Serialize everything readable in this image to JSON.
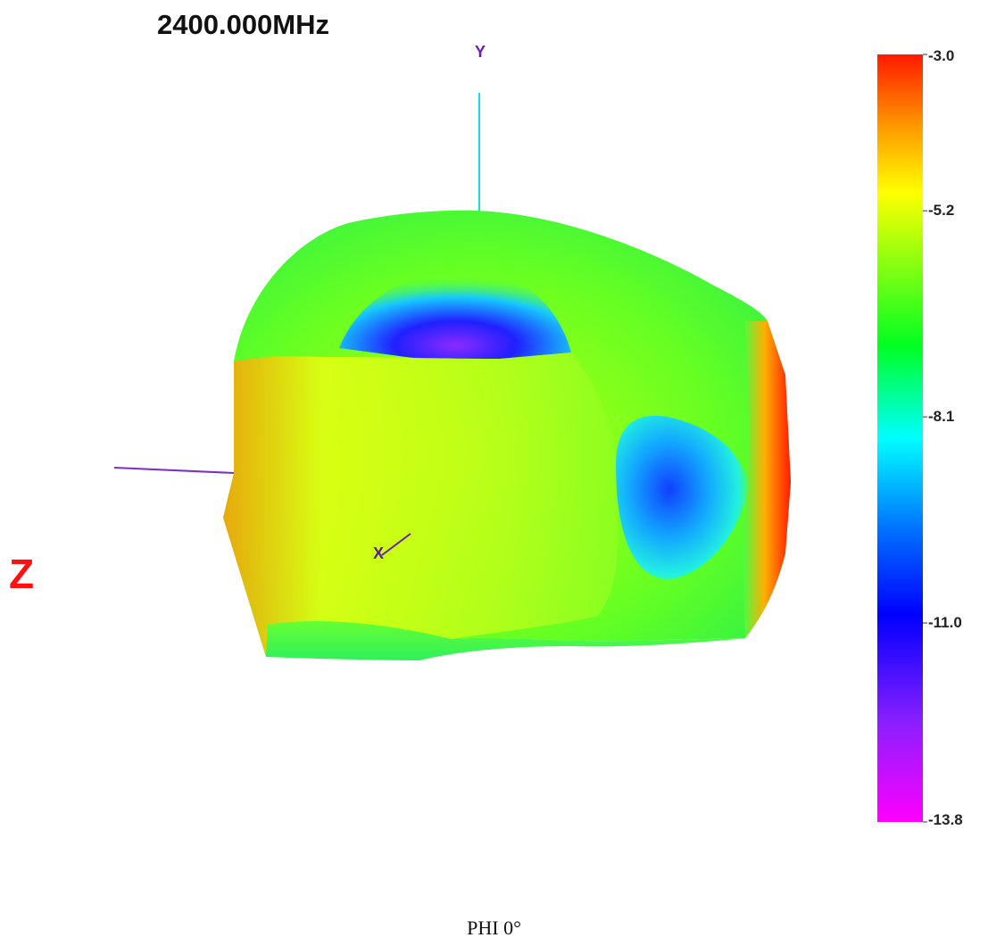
{
  "header": {
    "frequency_title": "2400.000MHz"
  },
  "axes": {
    "x_label": "X",
    "y_label": "Y",
    "z_label": "Z"
  },
  "caption": "PHI 0°",
  "colors": {
    "z_label": "#ff1111",
    "axis_line_y": "#22d8d8",
    "axis_line_z": "#7a2fc8",
    "axis_line_x": "#6a1fb0"
  },
  "chart_data": {
    "type": "heatmap",
    "title": "2400.000MHz",
    "colorbar": {
      "min": -13.8,
      "max": -3.0,
      "ticks": [
        -3.0,
        -5.2,
        -8.1,
        -11.0,
        -13.8
      ],
      "tick_labels": [
        "-3.0",
        "-5.2",
        "-8.1",
        "-11.0",
        "-13.8"
      ],
      "colormap": [
        "#ff0000",
        "#ffff00",
        "#00ff00",
        "#00ffff",
        "#0000ff",
        "#ff00ff"
      ]
    },
    "views": {
      "caption": "PHI 0°"
    }
  }
}
